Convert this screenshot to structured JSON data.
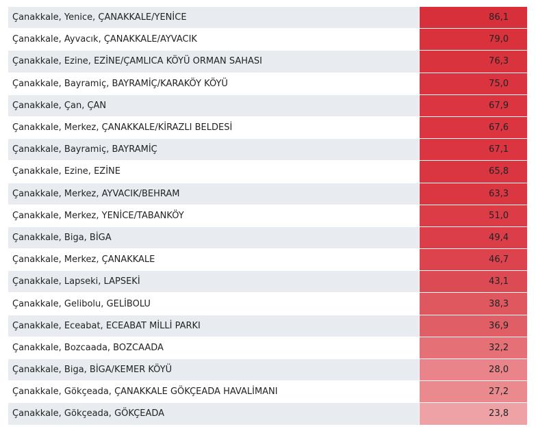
{
  "table": {
    "rows": [
      [
        "Çanakkale, Yenice, ÇANAKKALE/YENİCE",
        "86,1",
        "#d8303b"
      ],
      [
        "Çanakkale, Ayvacık, ÇANAKKALE/AYVACIK",
        "79,0",
        "#d9323d"
      ],
      [
        "Çanakkale, Ezine, EZİNE/ÇAMLICA KÖYÜ ORMAN SAHASI",
        "76,3",
        "#d9333e"
      ],
      [
        "Çanakkale, Bayramiç, BAYRAMİÇ/KARAKÖY KÖYÜ",
        "75,0",
        "#d9343f"
      ],
      [
        "Çanakkale, Çan, ÇAN",
        "67,9",
        "#da3540"
      ],
      [
        "Çanakkale, Merkez, ÇANAKKALE/KİRAZLI BELDESİ",
        "67,6",
        "#da3540"
      ],
      [
        "Çanakkale, Bayramiç, BAYRAMİÇ",
        "67,1",
        "#da3540"
      ],
      [
        "Çanakkale, Ezine, EZİNE",
        "65,8",
        "#da3641"
      ],
      [
        "Çanakkale, Merkez, AYVACIK/BEHRAM",
        "63,3",
        "#da3742"
      ],
      [
        "Çanakkale, Merkez, YENİCE/TABANKÖY",
        "51,0",
        "#db3c46"
      ],
      [
        "Çanakkale, Biga, BİGA",
        "49,4",
        "#db3e48"
      ],
      [
        "Çanakkale, Merkez, ÇANAKKALE",
        "46,7",
        "#dc434c"
      ],
      [
        "Çanakkale, Lapseki, LAPSEKİ",
        "43,1",
        "#dc4a53"
      ],
      [
        "Çanakkale, Gelibolu, GELİBOLU",
        "38,3",
        "#df5860"
      ],
      [
        "Çanakkale, Eceabat, ECEABAT MİLLİ PARKI",
        "36,9",
        "#e05f66"
      ],
      [
        "Çanakkale, Bozcaada, BOZCAADA",
        "32,2",
        "#e57177"
      ],
      [
        "Çanakkale, Biga, BİGA/KEMER KÖYÜ",
        "28,0",
        "#e9858a"
      ],
      [
        "Çanakkale, Gökçeada, ÇANAKKALE GÖKÇEADA HAVALİMANI",
        "27,2",
        "#ea898e"
      ],
      [
        "Çanakkale, Gökçeada, GÖKÇEADA",
        "23,8",
        "#efa2a6"
      ]
    ]
  }
}
